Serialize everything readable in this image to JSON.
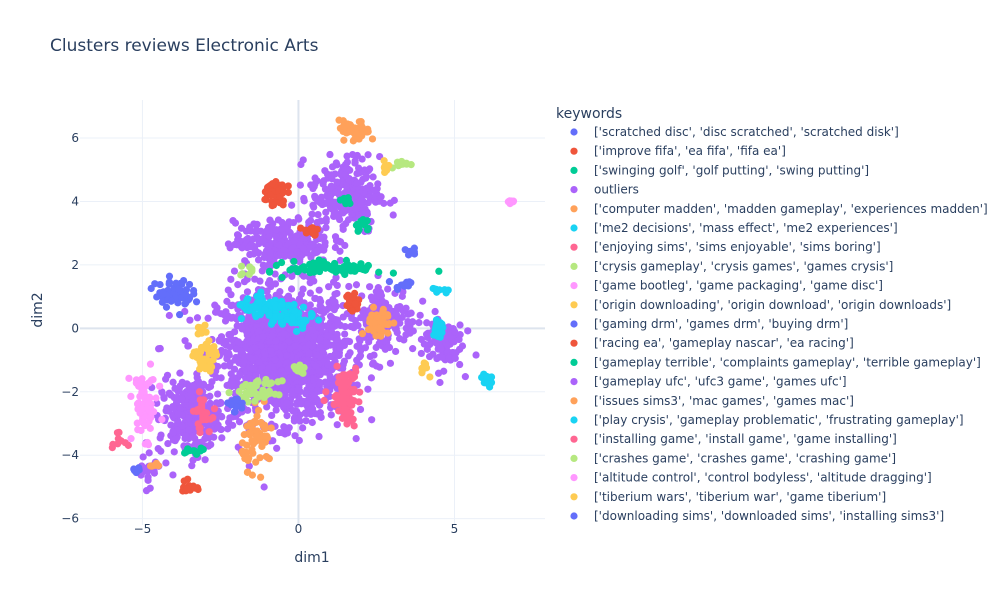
{
  "chart_data": {
    "type": "scatter",
    "title": "Clusters reviews Electronic Arts",
    "xlabel": "dim1",
    "ylabel": "dim2",
    "xlim": [
      -7.0,
      7.9
    ],
    "ylim": [
      -6.2,
      7.2
    ],
    "x_ticks": [
      -5,
      0,
      5
    ],
    "y_ticks": [
      -6,
      -4,
      -2,
      0,
      2,
      4,
      6
    ],
    "grid": true,
    "legend_title": "keywords",
    "legend_position": "right",
    "series": [
      {
        "name": "['scratched disc', 'disc scratched', 'scratched disk']",
        "color": "#636efa",
        "clusters": [
          {
            "cx": -4.0,
            "cy": 1.1,
            "sx": 0.55,
            "sy": 0.4,
            "n": 60
          },
          {
            "cx": 3.4,
            "cy": 1.4,
            "sx": 0.3,
            "sy": 0.15,
            "n": 12
          }
        ]
      },
      {
        "name": "['improve fifa', 'ea fifa', 'fifa ea']",
        "color": "#ef553b",
        "clusters": [
          {
            "cx": -0.8,
            "cy": 4.3,
            "sx": 0.35,
            "sy": 0.4,
            "n": 50
          },
          {
            "cx": 0.4,
            "cy": 3.1,
            "sx": 0.25,
            "sy": 0.2,
            "n": 12
          },
          {
            "cx": -3.5,
            "cy": -5.0,
            "sx": 0.2,
            "sy": 0.25,
            "n": 15
          }
        ]
      },
      {
        "name": "['swinging golf', 'golf putting', 'swing putting']",
        "color": "#00cc96",
        "clusters": [
          {
            "cx": 2.1,
            "cy": 3.2,
            "sx": 0.25,
            "sy": 0.2,
            "n": 14
          },
          {
            "cx": 1.5,
            "cy": 4.0,
            "sx": 0.2,
            "sy": 0.2,
            "n": 10
          },
          {
            "cx": -3.4,
            "cy": -3.8,
            "sx": 0.4,
            "sy": 0.1,
            "n": 10
          }
        ]
      },
      {
        "name": "outliers",
        "color": "#ab63fa",
        "clusters": [
          {
            "cx": -0.5,
            "cy": -0.8,
            "sx": 1.9,
            "sy": 1.9,
            "n": 1500
          },
          {
            "cx": 1.5,
            "cy": 4.2,
            "sx": 1.0,
            "sy": 1.1,
            "n": 250
          },
          {
            "cx": 2.8,
            "cy": 0.3,
            "sx": 0.9,
            "sy": 1.0,
            "n": 150
          },
          {
            "cx": -3.5,
            "cy": -2.8,
            "sx": 0.9,
            "sy": 1.1,
            "n": 250
          },
          {
            "cx": 4.6,
            "cy": -0.4,
            "sx": 0.6,
            "sy": 0.8,
            "n": 100
          },
          {
            "cx": -0.5,
            "cy": 2.7,
            "sx": 1.4,
            "sy": 0.6,
            "n": 250
          }
        ]
      },
      {
        "name": "['computer madden', 'madden gameplay', 'experiences madden']",
        "color": "#ffa15a",
        "clusters": [
          {
            "cx": 1.8,
            "cy": 6.2,
            "sx": 0.45,
            "sy": 0.3,
            "n": 40
          },
          {
            "cx": 2.6,
            "cy": 0.1,
            "sx": 0.35,
            "sy": 0.55,
            "n": 40
          },
          {
            "cx": -1.3,
            "cy": -3.5,
            "sx": 0.45,
            "sy": 0.8,
            "n": 60
          }
        ]
      },
      {
        "name": "['me2 decisions', 'mass effect', 'me2 experiences']",
        "color": "#19d3f3",
        "clusters": [
          {
            "cx": -1.0,
            "cy": 0.6,
            "sx": 0.9,
            "sy": 0.3,
            "n": 80
          },
          {
            "cx": 4.5,
            "cy": -0.1,
            "sx": 0.2,
            "sy": 0.4,
            "n": 18
          },
          {
            "cx": 6.0,
            "cy": -1.6,
            "sx": 0.15,
            "sy": 0.3,
            "n": 14
          },
          {
            "cx": 4.6,
            "cy": 1.2,
            "sx": 0.3,
            "sy": 0.08,
            "n": 10
          }
        ]
      },
      {
        "name": "['enjoying sims', 'sims enjoyable', 'sims boring']",
        "color": "#ff6692",
        "clusters": [
          {
            "cx": 1.5,
            "cy": -1.9,
            "sx": 0.45,
            "sy": 0.6,
            "n": 70
          },
          {
            "cx": -3.1,
            "cy": -2.7,
            "sx": 0.25,
            "sy": 0.5,
            "n": 25
          },
          {
            "cx": -5.8,
            "cy": -3.5,
            "sx": 0.2,
            "sy": 0.2,
            "n": 10
          }
        ]
      },
      {
        "name": "['crysis gameplay', 'crysis games', 'games crysis']",
        "color": "#b6e880",
        "clusters": [
          {
            "cx": -1.3,
            "cy": -2.0,
            "sx": 0.6,
            "sy": 0.3,
            "n": 45
          },
          {
            "cx": 3.3,
            "cy": 5.2,
            "sx": 0.25,
            "sy": 0.15,
            "n": 10
          },
          {
            "cx": -1.6,
            "cy": 1.8,
            "sx": 0.25,
            "sy": 0.15,
            "n": 8
          }
        ]
      },
      {
        "name": "['game bootleg', 'game packaging', 'game disc']",
        "color": "#ff97ff",
        "clusters": [
          {
            "cx": -4.9,
            "cy": -2.5,
            "sx": 0.35,
            "sy": 0.9,
            "n": 60
          },
          {
            "cx": 6.8,
            "cy": 4.0,
            "sx": 0.15,
            "sy": 0.05,
            "n": 8
          }
        ]
      },
      {
        "name": "['origin downloading', 'origin download', 'origin downloads']",
        "color": "#fecb52",
        "clusters": [
          {
            "cx": -3.0,
            "cy": -1.0,
            "sx": 0.3,
            "sy": 0.55,
            "n": 45
          },
          {
            "cx": 2.8,
            "cy": 5.1,
            "sx": 0.15,
            "sy": 0.2,
            "n": 8
          },
          {
            "cx": 4.0,
            "cy": -1.2,
            "sx": 0.15,
            "sy": 0.2,
            "n": 8
          }
        ]
      },
      {
        "name": "['gaming drm', 'games drm', 'buying drm']",
        "color": "#636efa",
        "clusters": [
          {
            "cx": -2.0,
            "cy": -2.4,
            "sx": 0.3,
            "sy": 0.25,
            "n": 15
          },
          {
            "cx": 3.6,
            "cy": 2.4,
            "sx": 0.2,
            "sy": 0.1,
            "n": 8
          }
        ]
      },
      {
        "name": "['racing ea', 'gameplay nascar', 'ea racing']",
        "color": "#ef553b",
        "clusters": [
          {
            "cx": 1.7,
            "cy": 0.8,
            "sx": 0.25,
            "sy": 0.3,
            "n": 18
          }
        ]
      },
      {
        "name": "['gameplay terrible', 'complaints gameplay', 'terrible gameplay']",
        "color": "#00cc96",
        "clusters": [
          {
            "cx": 1.2,
            "cy": 1.9,
            "sx": 1.4,
            "sy": 0.2,
            "n": 90
          }
        ]
      },
      {
        "name": "['gameplay ufc', 'ufc3 game', 'games ufc']",
        "color": "#ab63fa",
        "clusters": [
          {
            "cx": -4.8,
            "cy": -4.5,
            "sx": 0.3,
            "sy": 0.4,
            "n": 20
          }
        ]
      },
      {
        "name": "['issues sims3', 'mac games', 'games mac']",
        "color": "#ffa15a",
        "clusters": [
          {
            "cx": -4.6,
            "cy": -4.3,
            "sx": 0.15,
            "sy": 0.1,
            "n": 6
          }
        ]
      },
      {
        "name": "['play crysis', 'gameplay problematic', 'frustrating gameplay']",
        "color": "#19d3f3",
        "clusters": [
          {
            "cx": -0.2,
            "cy": 0.3,
            "sx": 0.6,
            "sy": 0.3,
            "n": 40
          }
        ]
      },
      {
        "name": "['installing game', 'install game', 'game installing']",
        "color": "#ff6692",
        "clusters": [
          {
            "cx": 1.6,
            "cy": -2.8,
            "sx": 0.25,
            "sy": 0.3,
            "n": 15
          }
        ]
      },
      {
        "name": "['crashes game', 'crashes game', 'crashing game']",
        "color": "#b6e880",
        "clusters": [
          {
            "cx": 0.0,
            "cy": -1.3,
            "sx": 0.2,
            "sy": 0.2,
            "n": 15
          }
        ]
      },
      {
        "name": "['altitude control', 'control bodyless', 'altitude dragging']",
        "color": "#ff97ff",
        "clusters": [
          {
            "cx": -5.2,
            "cy": -1.8,
            "sx": 0.2,
            "sy": 0.3,
            "n": 12
          }
        ]
      },
      {
        "name": "['tiberium wars', 'tiberium war', 'game tiberium']",
        "color": "#fecb52",
        "clusters": [
          {
            "cx": -3.1,
            "cy": -0.1,
            "sx": 0.15,
            "sy": 0.2,
            "n": 10
          }
        ]
      },
      {
        "name": "['downloading sims', 'downloaded sims', 'installing sims3']",
        "color": "#636efa",
        "clusters": [
          {
            "cx": -5.2,
            "cy": -4.5,
            "sx": 0.1,
            "sy": 0.1,
            "n": 5
          }
        ]
      }
    ]
  }
}
